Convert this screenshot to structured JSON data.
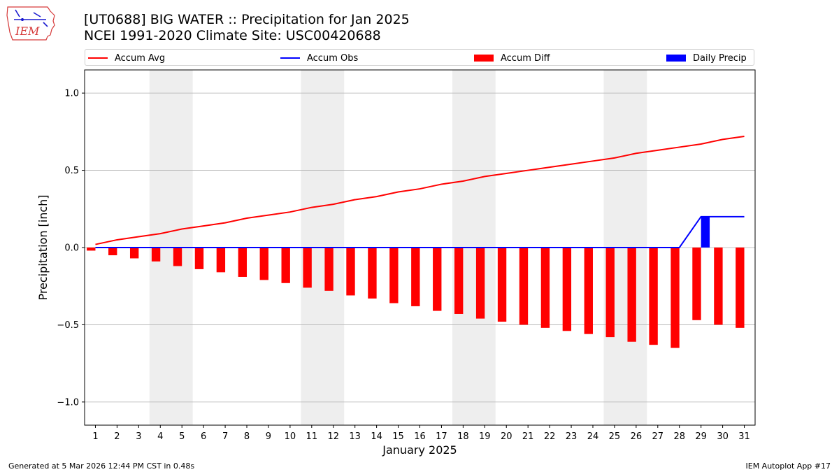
{
  "header": {
    "title_line1": "[UT0688] BIG WATER :: Precipitation for Jan 2025",
    "title_line2": "NCEI 1991-2020 Climate Site: USC00420688",
    "logo_text": "IEM"
  },
  "legend": {
    "accum_avg": "Accum Avg",
    "accum_obs": "Accum Obs",
    "accum_diff": "Accum Diff",
    "daily_precip": "Daily Precip"
  },
  "colors": {
    "accum_avg": "#ff0000",
    "accum_obs": "#0000ff",
    "accum_diff": "#ff0000",
    "daily_precip": "#0000ff",
    "weekend_band": "#eeeeee",
    "grid": "#b0b0b0"
  },
  "footer": {
    "generated": "Generated at 5 Mar 2026 12:44 PM CST in 0.48s",
    "app": "IEM Autoplot App #17"
  },
  "chart_data": {
    "type": "bar",
    "title": "[UT0688] BIG WATER :: Precipitation for Jan 2025",
    "subtitle": "NCEI 1991-2020 Climate Site: USC00420688",
    "xlabel": "January 2025",
    "ylabel": "Precipitation [inch]",
    "ylim": [
      -1.15,
      1.15
    ],
    "yticks": [
      -1.0,
      -0.5,
      0.0,
      0.5,
      1.0
    ],
    "ytick_labels": [
      "−1.0",
      "−0.5",
      "0.0",
      "0.5",
      "1.0"
    ],
    "grid": "horizontal",
    "legend_position": "top",
    "days": [
      1,
      2,
      3,
      4,
      5,
      6,
      7,
      8,
      9,
      10,
      11,
      12,
      13,
      14,
      15,
      16,
      17,
      18,
      19,
      20,
      21,
      22,
      23,
      24,
      25,
      26,
      27,
      28,
      29,
      30,
      31
    ],
    "weekend_bands": [
      [
        4,
        5
      ],
      [
        11,
        12
      ],
      [
        18,
        19
      ],
      [
        25,
        26
      ]
    ],
    "series": [
      {
        "name": "Accum Avg",
        "kind": "line",
        "values": [
          0.02,
          0.05,
          0.07,
          0.09,
          0.12,
          0.14,
          0.16,
          0.19,
          0.21,
          0.23,
          0.26,
          0.28,
          0.31,
          0.33,
          0.36,
          0.38,
          0.41,
          0.43,
          0.46,
          0.48,
          0.5,
          0.52,
          0.54,
          0.56,
          0.58,
          0.61,
          0.63,
          0.65,
          0.67,
          0.7,
          0.72
        ]
      },
      {
        "name": "Accum Obs",
        "kind": "line",
        "values": [
          0,
          0,
          0,
          0,
          0,
          0,
          0,
          0,
          0,
          0,
          0,
          0,
          0,
          0,
          0,
          0,
          0,
          0,
          0,
          0,
          0,
          0,
          0,
          0,
          0,
          0,
          0,
          0,
          0.2,
          0.2,
          0.2
        ]
      },
      {
        "name": "Accum Diff",
        "kind": "bar",
        "values": [
          -0.02,
          -0.05,
          -0.07,
          -0.09,
          -0.12,
          -0.14,
          -0.16,
          -0.19,
          -0.21,
          -0.23,
          -0.26,
          -0.28,
          -0.31,
          -0.33,
          -0.36,
          -0.38,
          -0.41,
          -0.43,
          -0.46,
          -0.48,
          -0.5,
          -0.52,
          -0.54,
          -0.56,
          -0.58,
          -0.61,
          -0.63,
          -0.65,
          -0.47,
          -0.5,
          -0.52
        ]
      },
      {
        "name": "Daily Precip",
        "kind": "bar",
        "values": [
          0,
          0,
          0,
          0,
          0,
          0,
          0,
          0,
          0,
          0,
          0,
          0,
          0,
          0,
          0,
          0,
          0,
          0,
          0,
          0,
          0,
          0,
          0,
          0,
          0,
          0,
          0,
          0,
          0.2,
          0,
          0
        ]
      }
    ]
  }
}
